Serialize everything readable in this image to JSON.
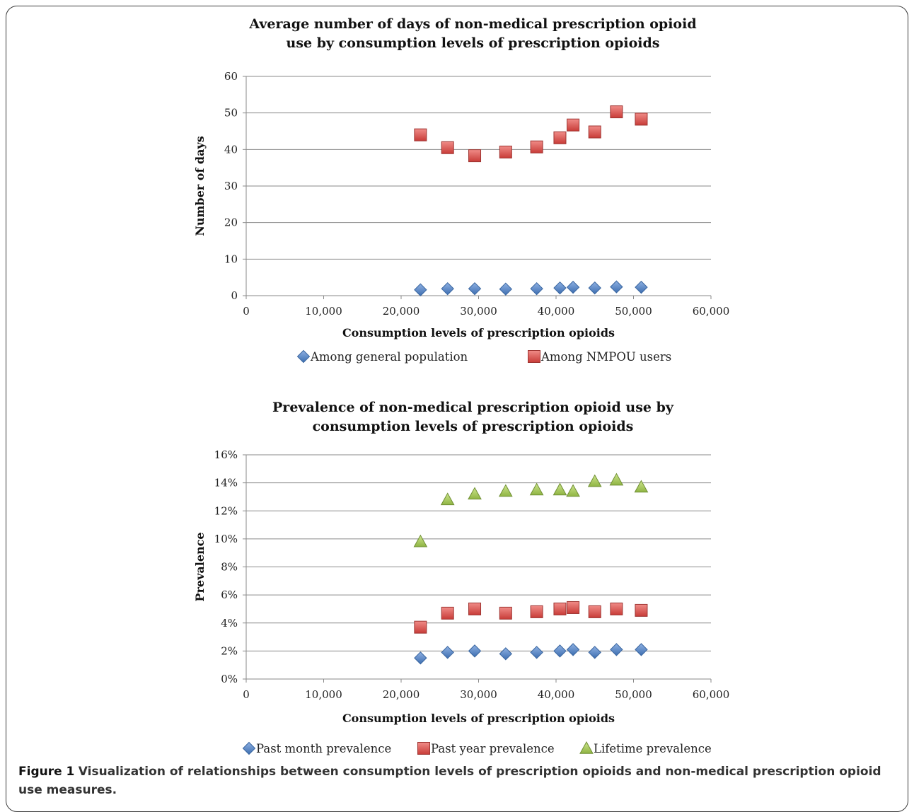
{
  "figure": {
    "label": "Figure 1",
    "caption": "Visualization of relationships between consumption levels of prescription opioids and non-medical prescription opioid use measures."
  },
  "chart_data": [
    {
      "type": "scatter",
      "title_lines": [
        "Average number of days of non-medical prescription opioid",
        "use by consumption levels of prescription opioids"
      ],
      "xlabel": "Consumption levels of prescription opioids",
      "ylabel": "Number of days",
      "xlim": [
        0,
        60000
      ],
      "ylim": [
        0,
        60
      ],
      "x_ticks": [
        "0",
        "10,000",
        "20,000",
        "30,000",
        "40,000",
        "50,000",
        "60,000"
      ],
      "y_ticks": [
        "0",
        "10",
        "20",
        "30",
        "40",
        "50",
        "60"
      ],
      "grid": true,
      "legend_position": "bottom",
      "series": [
        {
          "name": "Among general population",
          "marker": "diamond",
          "color": "#4f81bd",
          "x": [
            22500,
            26000,
            29500,
            33500,
            37500,
            40500,
            42200,
            45000,
            47800,
            51000
          ],
          "y": [
            1.6,
            1.9,
            1.9,
            1.8,
            1.9,
            2.1,
            2.3,
            2.1,
            2.4,
            2.3
          ]
        },
        {
          "name": "Among NMPOU users",
          "marker": "square",
          "color": "#c0504d",
          "x": [
            22500,
            26000,
            29500,
            33500,
            37500,
            40500,
            42200,
            45000,
            47800,
            51000
          ],
          "y": [
            44,
            40.5,
            38.3,
            39.3,
            40.7,
            43.2,
            46.7,
            44.8,
            50.3,
            48.3
          ]
        }
      ]
    },
    {
      "type": "scatter",
      "title_lines": [
        "Prevalence of non-medical prescription opioid use by",
        "consumption levels of prescription opioids"
      ],
      "xlabel": "Consumption levels of prescription opioids",
      "ylabel": "Prevalence",
      "xlim": [
        0,
        60000
      ],
      "ylim": [
        0,
        0.16
      ],
      "x_ticks": [
        "0",
        "10,000",
        "20,000",
        "30,000",
        "40,000",
        "50,000",
        "60,000"
      ],
      "y_ticks": [
        "0%",
        "2%",
        "4%",
        "6%",
        "8%",
        "10%",
        "12%",
        "14%",
        "16%"
      ],
      "grid": true,
      "legend_position": "bottom",
      "series": [
        {
          "name": "Past month prevalence",
          "marker": "diamond",
          "color": "#4f81bd",
          "x": [
            22500,
            26000,
            29500,
            33500,
            37500,
            40500,
            42200,
            45000,
            47800,
            51000
          ],
          "y": [
            0.015,
            0.019,
            0.02,
            0.018,
            0.019,
            0.02,
            0.021,
            0.019,
            0.021,
            0.021
          ]
        },
        {
          "name": "Past year prevalence",
          "marker": "square",
          "color": "#c0504d",
          "x": [
            22500,
            26000,
            29500,
            33500,
            37500,
            40500,
            42200,
            45000,
            47800,
            51000
          ],
          "y": [
            0.037,
            0.047,
            0.05,
            0.047,
            0.048,
            0.05,
            0.051,
            0.048,
            0.05,
            0.049
          ]
        },
        {
          "name": "Lifetime prevalence",
          "marker": "triangle",
          "color": "#9bbb59",
          "x": [
            22500,
            26000,
            29500,
            33500,
            37500,
            40500,
            42200,
            45000,
            47800,
            51000
          ],
          "y": [
            0.098,
            0.128,
            0.132,
            0.134,
            0.135,
            0.135,
            0.134,
            0.141,
            0.142,
            0.137
          ]
        }
      ]
    }
  ]
}
